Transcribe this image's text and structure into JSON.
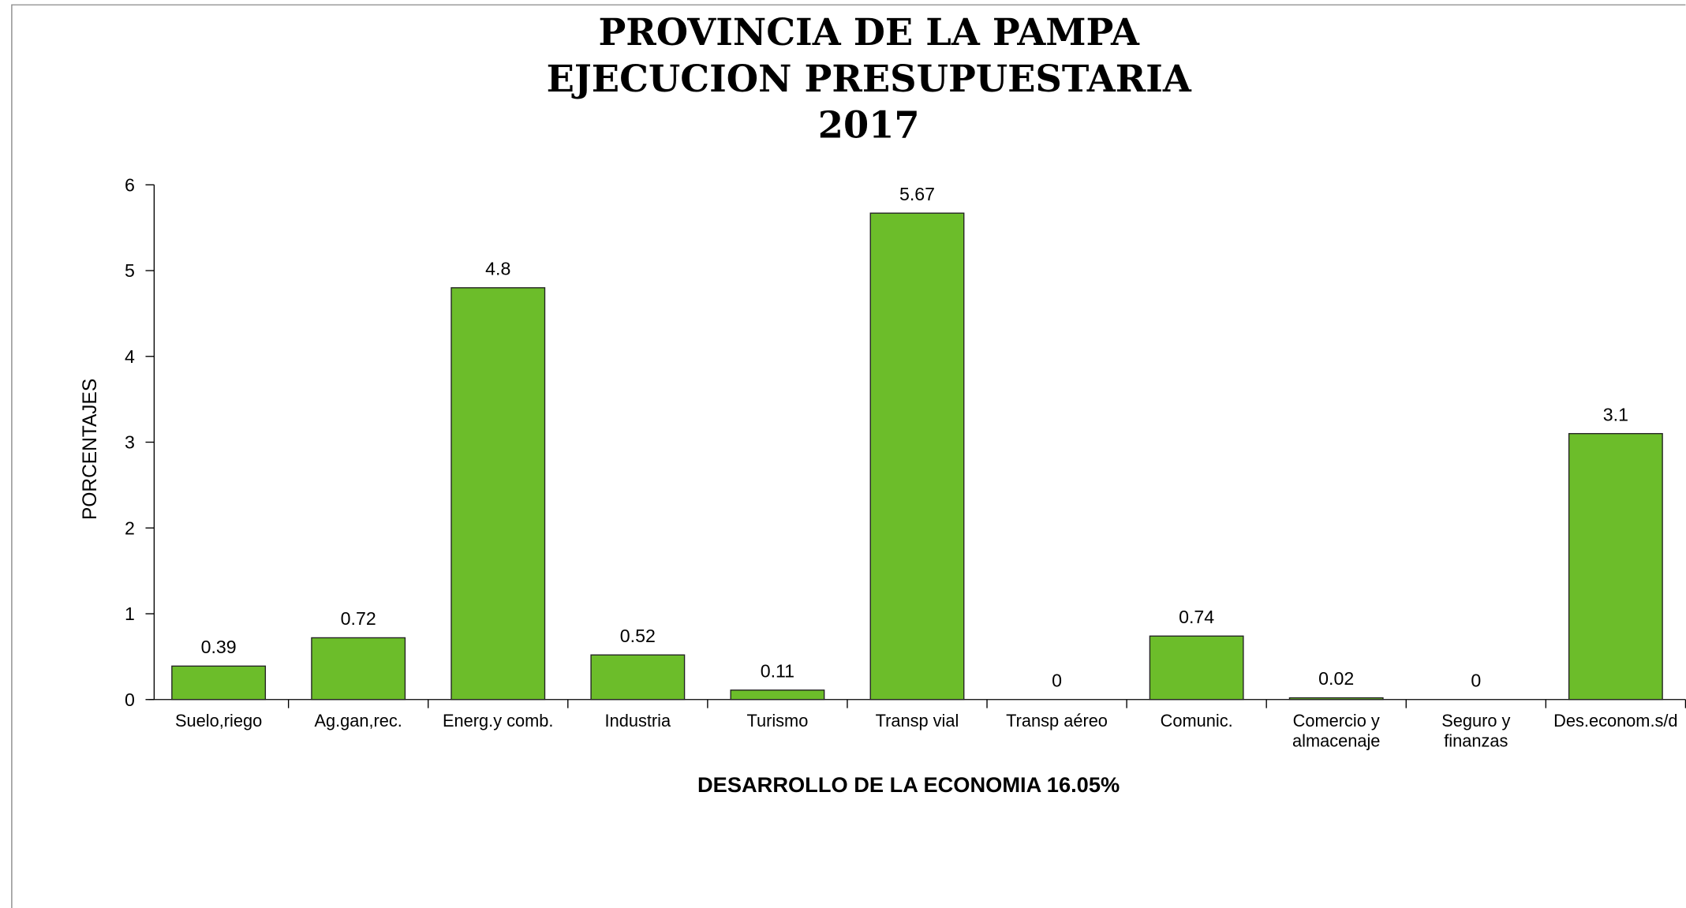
{
  "chart_data": {
    "type": "bar",
    "title": "PROVINCIA DE LA PAMPA\nEJECUCION PRESUPUESTARIA\n2017",
    "x_label": "DESARROLLO DE LA ECONOMIA 16.05%",
    "y_label": "PORCENTAJES",
    "categories": [
      "Suelo,riego",
      "Ag.gan,rec.",
      "Energ.y comb.",
      "Industria",
      "Turismo",
      "Transp vial",
      "Transp aéreo",
      "Comunic.",
      "Comercio y\nalmacenaje",
      "Seguro y\nfinanzas",
      "Des.econom.s/d"
    ],
    "values": [
      0.39,
      0.72,
      4.8,
      0.52,
      0.11,
      5.67,
      0,
      0.74,
      0.02,
      0,
      3.1
    ],
    "color": "#6cbd2a",
    "ylim": [
      0,
      6
    ],
    "yticks": [
      0,
      1,
      2,
      3,
      4,
      5,
      6
    ],
    "grid": false
  }
}
